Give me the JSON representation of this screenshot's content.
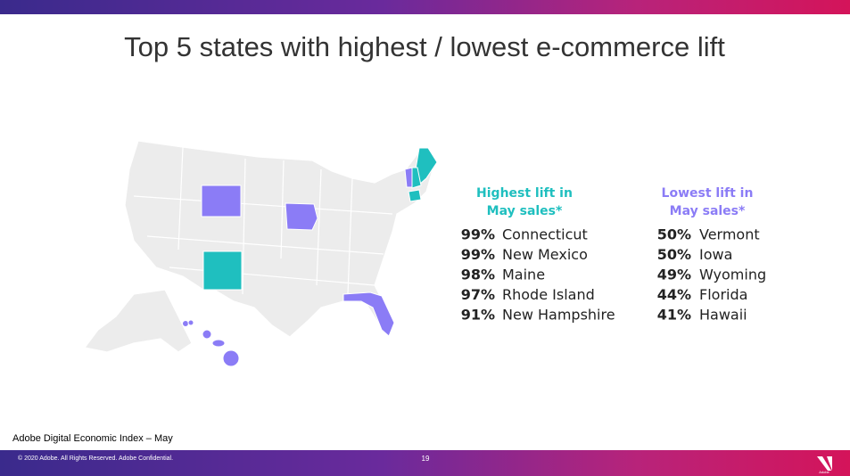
{
  "header": {
    "title": "Top 5 states with highest / lowest e-commerce lift"
  },
  "lists": [
    {
      "heading": [
        "Highest lift in",
        "May sales*"
      ],
      "items": [
        {
          "value": "99%",
          "name": "Connecticut"
        },
        {
          "value": "99%",
          "name": "New Mexico"
        },
        {
          "value": "98%",
          "name": "Maine"
        },
        {
          "value": "97%",
          "name": "Rhode Island"
        },
        {
          "value": "91%",
          "name": "New Hampshire"
        }
      ]
    },
    {
      "heading": [
        "Lowest lift in",
        "May sales*"
      ],
      "items": [
        {
          "value": "50%",
          "name": "Vermont"
        },
        {
          "value": "50%",
          "name": "Iowa"
        },
        {
          "value": "49%",
          "name": "Wyoming"
        },
        {
          "value": "44%",
          "name": "Florida"
        },
        {
          "value": "41%",
          "name": "Hawaii"
        }
      ]
    }
  ],
  "footer": {
    "source": "Adobe Digital Economic Index – May",
    "copyright": "© 2020 Adobe.  All Rights Reserved.  Adobe Confidential.",
    "page": "19",
    "logo": "Adobe"
  }
}
